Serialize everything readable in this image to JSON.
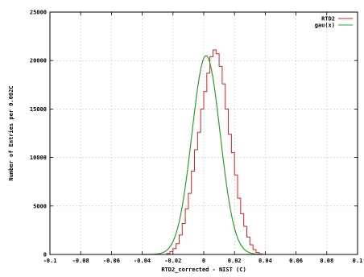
{
  "chart_data": {
    "type": "line",
    "title": "",
    "xlabel": "RTD2_corrected - NIST  (C)",
    "ylabel": "Number of Entries per 0.002C",
    "xlim": [
      -0.1,
      0.1
    ],
    "ylim": [
      0,
      25000
    ],
    "grid": true,
    "legend_position": "top-right",
    "x_tick_labels": [
      "-0.1",
      "-0.08",
      "-0.06",
      "-0.04",
      "-0.02",
      "0",
      "0.02",
      "0.04",
      "0.06",
      "0.08",
      "0.1"
    ],
    "y_tick_labels": [
      "0",
      "5000",
      "10000",
      "15000",
      "20000",
      "25000"
    ],
    "series": [
      {
        "name": "RTD2",
        "style": "histogram-step",
        "color": "#d62020",
        "bin_width": 0.002,
        "bin_edges_start": -0.026,
        "values": [
          0,
          100,
          300,
          600,
          1100,
          2000,
          3200,
          4700,
          6300,
          8600,
          10800,
          12600,
          15000,
          16800,
          18700,
          20400,
          21100,
          20700,
          19400,
          17600,
          15000,
          12400,
          10500,
          8200,
          5800,
          4200,
          2900,
          1800,
          1000,
          500,
          200,
          60,
          0
        ]
      },
      {
        "name": "gau(x)",
        "style": "gaussian-curve",
        "color": "#2aa02a",
        "mean": 0.0015,
        "sigma": 0.0092,
        "amplitude": 20500
      }
    ]
  }
}
